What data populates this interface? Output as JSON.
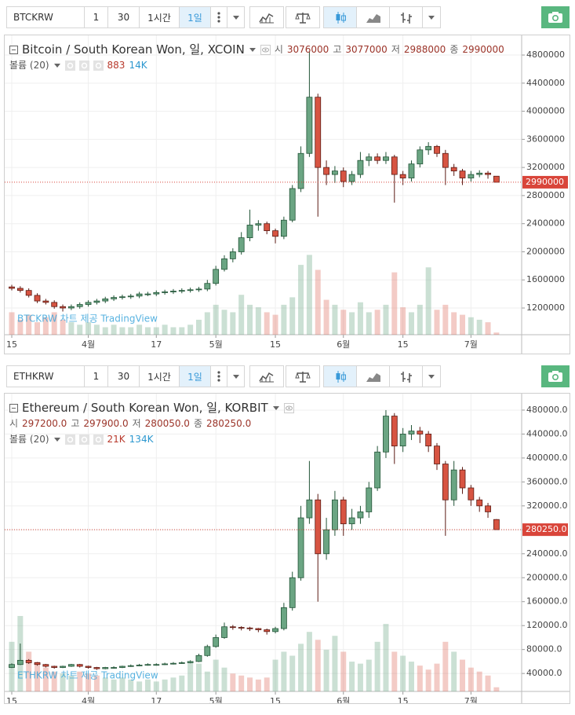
{
  "toolbars": [
    {
      "symbol": "BTCKRW",
      "intervals": [
        "1",
        "30",
        "1시간",
        "1일"
      ]
    },
    {
      "symbol": "ETHKRW",
      "intervals": [
        "1",
        "30",
        "1시간",
        "1일"
      ]
    }
  ],
  "chart_data": [
    {
      "type": "candlestick",
      "title": "Bitcoin / South Korean Won, 일, XCOIN",
      "ohlc": [
        {
          "label": "시",
          "value": "3076000"
        },
        {
          "label": "고",
          "value": "3077000"
        },
        {
          "label": "저",
          "value": "2988000"
        },
        {
          "label": "종",
          "value": "2990000"
        }
      ],
      "volume_title": "볼륨 (20)",
      "volume_legend": [
        "883",
        "14K"
      ],
      "watermark": "BTCKRW 차트 제공 TradingView",
      "categories": [
        "15",
        null,
        null,
        null,
        null,
        null,
        null,
        null,
        null,
        "4월",
        null,
        null,
        null,
        null,
        null,
        null,
        null,
        "17",
        null,
        null,
        null,
        null,
        null,
        null,
        "5월",
        null,
        null,
        null,
        null,
        null,
        null,
        "15",
        null,
        null,
        null,
        null,
        null,
        null,
        null,
        "6월",
        null,
        null,
        null,
        null,
        null,
        null,
        "15",
        null,
        null,
        null,
        null,
        null,
        null,
        null,
        "7월",
        null,
        null,
        null
      ],
      "open": [
        1500000,
        1480000,
        1450000,
        1380000,
        1300000,
        1280000,
        1220000,
        1200000,
        1220000,
        1250000,
        1280000,
        1300000,
        1330000,
        1350000,
        1360000,
        1370000,
        1400000,
        1400000,
        1420000,
        1430000,
        1440000,
        1450000,
        1460000,
        1470000,
        1550000,
        1750000,
        1900000,
        2000000,
        2200000,
        2380000,
        2400000,
        2300000,
        2220000,
        2450000,
        2900000,
        3400000,
        4200000,
        3200000,
        3100000,
        3150000,
        3000000,
        3100000,
        3300000,
        3350000,
        3300000,
        3350000,
        3100000,
        3050000,
        3250000,
        3450000,
        3500000,
        3400000,
        3200000,
        3150000,
        3050000,
        3100000,
        3120000,
        3076000
      ],
      "high": [
        1530000,
        1510000,
        1480000,
        1410000,
        1330000,
        1310000,
        1250000,
        1250000,
        1280000,
        1310000,
        1330000,
        1360000,
        1380000,
        1390000,
        1400000,
        1430000,
        1430000,
        1450000,
        1460000,
        1470000,
        1480000,
        1490000,
        1500000,
        1600000,
        1800000,
        1950000,
        2050000,
        2280000,
        2600000,
        2450000,
        2430000,
        2330000,
        2500000,
        2950000,
        3500000,
        4850000,
        4250000,
        3300000,
        3220000,
        3200000,
        3150000,
        3420000,
        3400000,
        3400000,
        3420000,
        3380000,
        3150000,
        3300000,
        3500000,
        3560000,
        3520000,
        3450000,
        3250000,
        3180000,
        3150000,
        3160000,
        3150000,
        3077000
      ],
      "low": [
        1450000,
        1420000,
        1350000,
        1270000,
        1250000,
        1190000,
        1150000,
        1170000,
        1190000,
        1220000,
        1250000,
        1270000,
        1300000,
        1320000,
        1330000,
        1340000,
        1370000,
        1370000,
        1390000,
        1400000,
        1410000,
        1420000,
        1430000,
        1440000,
        1520000,
        1720000,
        1850000,
        1960000,
        2150000,
        2300000,
        2250000,
        2120000,
        2180000,
        2420000,
        2850000,
        3350000,
        2500000,
        2950000,
        2980000,
        2920000,
        2950000,
        3050000,
        3220000,
        3250000,
        3250000,
        2700000,
        2950000,
        3000000,
        3200000,
        3380000,
        3350000,
        2950000,
        3080000,
        2950000,
        3000000,
        3060000,
        3040000,
        2988000
      ],
      "close": [
        1480000,
        1450000,
        1380000,
        1300000,
        1280000,
        1220000,
        1200000,
        1220000,
        1250000,
        1280000,
        1300000,
        1330000,
        1350000,
        1360000,
        1370000,
        1400000,
        1400000,
        1420000,
        1430000,
        1440000,
        1450000,
        1460000,
        1470000,
        1550000,
        1750000,
        1900000,
        2000000,
        2200000,
        2380000,
        2400000,
        2300000,
        2220000,
        2450000,
        2900000,
        3400000,
        4200000,
        3200000,
        3100000,
        3150000,
        3000000,
        3100000,
        3300000,
        3350000,
        3300000,
        3350000,
        3100000,
        3050000,
        3250000,
        3450000,
        3500000,
        3400000,
        3200000,
        3150000,
        3050000,
        3100000,
        3120000,
        3100000,
        2990000
      ],
      "volume": [
        9000,
        6000,
        8000,
        5000,
        7000,
        9000,
        6000,
        5000,
        4000,
        5000,
        4000,
        3000,
        4000,
        3000,
        3000,
        4000,
        3000,
        3000,
        4000,
        3000,
        3000,
        4000,
        6000,
        9000,
        12000,
        10000,
        9000,
        16000,
        12000,
        11000,
        9000,
        8000,
        12000,
        15000,
        28000,
        32000,
        26000,
        14000,
        12000,
        10000,
        9000,
        13000,
        9000,
        10000,
        12000,
        25000,
        11000,
        9000,
        12000,
        27000,
        10000,
        12000,
        9000,
        8000,
        7000,
        6000,
        5000,
        883
      ],
      "ylim": [
        820000,
        5080000
      ],
      "yticks": [
        1200000,
        1600000,
        2000000,
        2400000,
        2800000,
        3200000,
        3600000,
        4000000,
        4400000,
        4800000
      ],
      "y2lim": [
        0,
        120000
      ],
      "last_price": 2990000,
      "grid": true,
      "up_color": "#6ba583",
      "down_color": "#d75442",
      "up_border": "#225437",
      "down_border": "#5b1a13",
      "volume_up_color": "rgba(107,165,131,0.35)",
      "volume_down_color": "rgba(215,84,66,0.3)",
      "last_price_color": "#d9453a"
    },
    {
      "type": "candlestick",
      "title": "Ethereum / South Korean Won, 일, KORBIT",
      "ohlc": [
        {
          "label": "시",
          "value": "297200.0"
        },
        {
          "label": "고",
          "value": "297900.0"
        },
        {
          "label": "저",
          "value": "280050.0"
        },
        {
          "label": "종",
          "value": "280250.0"
        }
      ],
      "volume_title": "볼륨 (20)",
      "volume_legend": [
        "21K",
        "134K"
      ],
      "watermark": "ETHKRW 차트 제공 TradingView",
      "categories": [
        "15",
        null,
        null,
        null,
        null,
        null,
        null,
        null,
        null,
        "4월",
        null,
        null,
        null,
        null,
        null,
        null,
        null,
        "17",
        null,
        null,
        null,
        null,
        null,
        null,
        "5월",
        null,
        null,
        null,
        null,
        null,
        null,
        "15",
        null,
        null,
        null,
        null,
        null,
        null,
        null,
        "6월",
        null,
        null,
        null,
        null,
        null,
        null,
        "15",
        null,
        null,
        null,
        null,
        null,
        null,
        null,
        "7월",
        null,
        null,
        null
      ],
      "open": [
        50000,
        55000,
        62000,
        58000,
        55000,
        52000,
        50000,
        52000,
        55000,
        52000,
        50000,
        48000,
        50000,
        50000,
        52000,
        53000,
        54000,
        55000,
        55000,
        56000,
        57000,
        58000,
        60000,
        70000,
        85000,
        100000,
        118000,
        117000,
        116000,
        115000,
        113000,
        110000,
        115000,
        150000,
        200000,
        300000,
        330000,
        240000,
        280000,
        330000,
        290000,
        300000,
        310000,
        350000,
        410000,
        470000,
        420000,
        440000,
        445000,
        440000,
        420000,
        390000,
        330000,
        380000,
        350000,
        330000,
        320000,
        297200
      ],
      "high": [
        57000,
        90000,
        64000,
        59000,
        56000,
        53000,
        53000,
        56000,
        56000,
        53000,
        51000,
        51000,
        52000,
        53000,
        55000,
        56000,
        57000,
        57000,
        58000,
        59000,
        60000,
        62000,
        73000,
        88000,
        105000,
        125000,
        121000,
        119000,
        118000,
        116000,
        115000,
        118000,
        158000,
        210000,
        320000,
        395000,
        340000,
        300000,
        345000,
        335000,
        315000,
        320000,
        360000,
        420000,
        480000,
        475000,
        450000,
        455000,
        452000,
        445000,
        425000,
        395000,
        395000,
        385000,
        355000,
        335000,
        325000,
        297900
      ],
      "low": [
        49000,
        54000,
        56000,
        53000,
        50000,
        48000,
        49000,
        51000,
        50000,
        48000,
        46000,
        47000,
        48000,
        49000,
        51000,
        52000,
        53000,
        53000,
        54000,
        55000,
        56000,
        57000,
        59000,
        68000,
        83000,
        98000,
        113000,
        112000,
        111000,
        109000,
        105000,
        107000,
        112000,
        145000,
        195000,
        290000,
        160000,
        230000,
        270000,
        270000,
        280000,
        290000,
        300000,
        345000,
        400000,
        390000,
        410000,
        430000,
        425000,
        410000,
        380000,
        270000,
        320000,
        340000,
        320000,
        310000,
        300000,
        280050
      ],
      "close": [
        55000,
        62000,
        58000,
        55000,
        52000,
        50000,
        52000,
        55000,
        52000,
        50000,
        48000,
        50000,
        50000,
        52000,
        53000,
        54000,
        55000,
        55000,
        56000,
        57000,
        58000,
        60000,
        70000,
        85000,
        100000,
        118000,
        117000,
        116000,
        115000,
        113000,
        110000,
        115000,
        150000,
        200000,
        300000,
        330000,
        240000,
        280000,
        330000,
        290000,
        300000,
        310000,
        350000,
        410000,
        470000,
        420000,
        440000,
        445000,
        440000,
        420000,
        390000,
        330000,
        380000,
        350000,
        330000,
        320000,
        310000,
        280250
      ],
      "volume": [
        250000,
        380000,
        200000,
        150000,
        120000,
        100000,
        90000,
        80000,
        100000,
        90000,
        80000,
        70000,
        60000,
        70000,
        60000,
        50000,
        60000,
        50000,
        60000,
        70000,
        80000,
        150000,
        140000,
        100000,
        160000,
        120000,
        90000,
        80000,
        70000,
        60000,
        70000,
        160000,
        200000,
        180000,
        240000,
        300000,
        260000,
        210000,
        280000,
        200000,
        150000,
        140000,
        160000,
        250000,
        340000,
        200000,
        180000,
        150000,
        130000,
        110000,
        140000,
        250000,
        200000,
        160000,
        120000,
        100000,
        80000,
        21000
      ],
      "ylim": [
        10000,
        507500
      ],
      "yticks": [
        {
          "value": 40000,
          "label": "40000.0"
        },
        {
          "value": 80000,
          "label": "80000.0"
        },
        {
          "value": 120000,
          "label": "120000.0"
        },
        {
          "value": 160000,
          "label": "160000.0"
        },
        {
          "value": 200000,
          "label": "200000.0"
        },
        {
          "value": 240000,
          "label": "240000.0"
        },
        {
          "value": 280000,
          "label": "280000.0"
        },
        {
          "value": 320000,
          "label": "320000.0"
        },
        {
          "value": 360000,
          "label": "360000.0"
        },
        {
          "value": 400000,
          "label": "400000.0"
        },
        {
          "value": 440000,
          "label": "440000.0"
        },
        {
          "value": 480000,
          "label": "480000.0"
        }
      ],
      "y2lim": [
        0,
        1500000
      ],
      "last_price": {
        "value": 280250,
        "label": "280250.0"
      },
      "grid": true,
      "up_color": "#6ba583",
      "down_color": "#d75442",
      "up_border": "#225437",
      "down_border": "#5b1a13",
      "volume_up_color": "rgba(107,165,131,0.35)",
      "volume_down_color": "rgba(215,84,66,0.3)",
      "last_price_color": "#d9453a"
    }
  ]
}
